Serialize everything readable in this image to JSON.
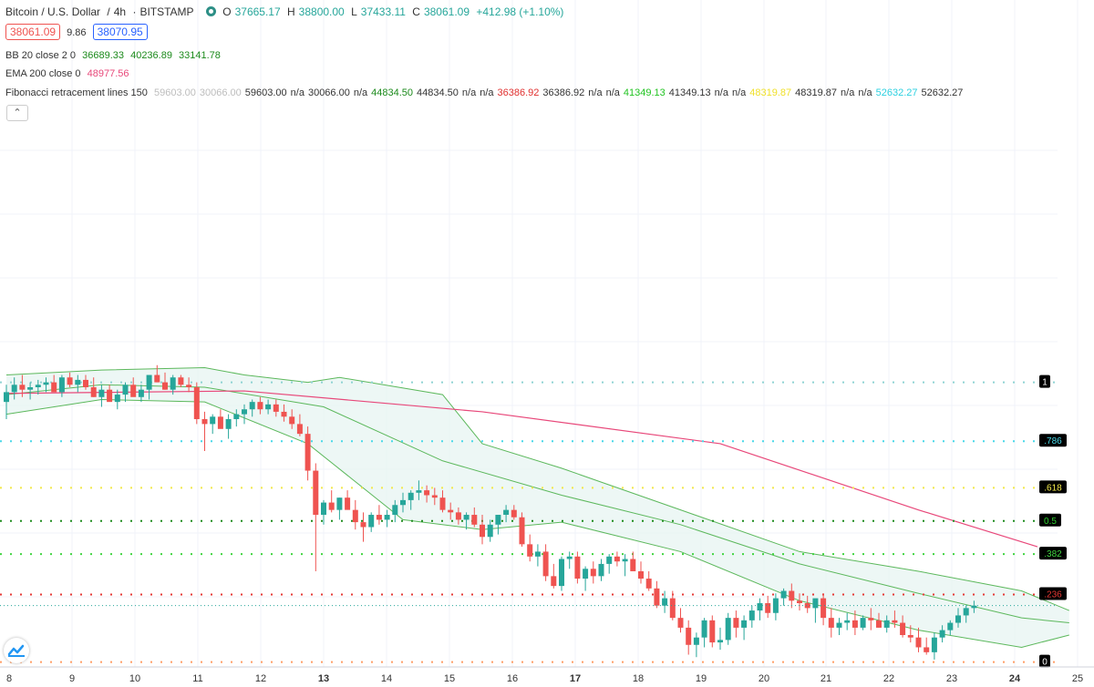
{
  "header": {
    "symbol": "Bitcoin / U.S. Dollar",
    "interval": "4h",
    "exchange": "BITSTAMP",
    "open_label": "O",
    "open": "37665.17",
    "high_label": "H",
    "high": "38800.00",
    "low_label": "L",
    "low": "37433.11",
    "close_label": "C",
    "close": "38061.09",
    "change": "+412.98 (+1.10%)"
  },
  "price_boxes": {
    "bid": "38061.09",
    "spread": "9.86",
    "ask": "38070.95"
  },
  "indicators": {
    "bb": {
      "label": "BB 20 close 2 0",
      "v1": "36689.33",
      "v2": "40236.89",
      "v3": "33141.78"
    },
    "ema": {
      "label": "EMA 200 close 0",
      "value": "48977.56"
    },
    "fib": {
      "label": "Fibonacci retracement lines 150",
      "values": [
        {
          "text": "59603.00",
          "color": "#bdbdbd"
        },
        {
          "text": "30066.00",
          "color": "#bdbdbd"
        },
        {
          "text": "59603.00",
          "color": "#333333"
        },
        {
          "text": "n/a",
          "color": "#333333"
        },
        {
          "text": "30066.00",
          "color": "#333333"
        },
        {
          "text": "n/a",
          "color": "#333333"
        },
        {
          "text": "44834.50",
          "color": "#1b8a1b"
        },
        {
          "text": "44834.50",
          "color": "#333333"
        },
        {
          "text": "n/a",
          "color": "#333333"
        },
        {
          "text": "n/a",
          "color": "#333333"
        },
        {
          "text": "36386.92",
          "color": "#e0302f"
        },
        {
          "text": "36386.92",
          "color": "#333333"
        },
        {
          "text": "n/a",
          "color": "#333333"
        },
        {
          "text": "n/a",
          "color": "#333333"
        },
        {
          "text": "41349.13",
          "color": "#22c422"
        },
        {
          "text": "41349.13",
          "color": "#333333"
        },
        {
          "text": "n/a",
          "color": "#333333"
        },
        {
          "text": "n/a",
          "color": "#333333"
        },
        {
          "text": "48319.87",
          "color": "#f0e02a"
        },
        {
          "text": "48319.87",
          "color": "#333333"
        },
        {
          "text": "n/a",
          "color": "#333333"
        },
        {
          "text": "n/a",
          "color": "#333333"
        },
        {
          "text": "52632.27",
          "color": "#2cd0e0"
        },
        {
          "text": "52632.27",
          "color": "#333333"
        }
      ]
    }
  },
  "collapse_label": "⌃",
  "colors": {
    "up": "#26a69a",
    "down": "#ef5350",
    "ema": "#e8487a",
    "bb": "#5cb85c",
    "bb_fill": "#e6f4f1",
    "grid": "#f0f3fa"
  },
  "chart_data": {
    "type": "candlestick",
    "x_ticks": [
      "9",
      "10",
      "11",
      "12",
      "13",
      "14",
      "15",
      "16",
      "17",
      "18",
      "19",
      "20",
      "21",
      "22",
      "23",
      "24",
      "25"
    ],
    "ylim": [
      29400,
      52200
    ],
    "candles": [
      [
        40200,
        40900,
        39500,
        40600
      ],
      [
        40600,
        41200,
        40300,
        40900
      ],
      [
        40900,
        41300,
        40400,
        40700
      ],
      [
        40700,
        41000,
        40300,
        40800
      ],
      [
        40800,
        41100,
        40500,
        40900
      ],
      [
        40900,
        41200,
        40600,
        41000
      ],
      [
        41000,
        41300,
        40700,
        40600
      ],
      [
        40600,
        41300,
        40400,
        41200
      ],
      [
        41200,
        41400,
        40800,
        40900
      ],
      [
        40900,
        41300,
        40600,
        41100
      ],
      [
        41100,
        41300,
        40700,
        40800
      ],
      [
        40800,
        41200,
        40400,
        40400
      ],
      [
        40400,
        40900,
        40000,
        40700
      ],
      [
        40700,
        40900,
        40300,
        40200
      ],
      [
        40200,
        40700,
        39900,
        40500
      ],
      [
        40500,
        41000,
        40200,
        40900
      ],
      [
        40900,
        41200,
        40600,
        40400
      ],
      [
        40400,
        40900,
        40200,
        40700
      ],
      [
        40700,
        41100,
        40300,
        41300
      ],
      [
        41300,
        41700,
        41000,
        41000
      ],
      [
        41000,
        41400,
        40700,
        40700
      ],
      [
        40700,
        41300,
        40500,
        41200
      ],
      [
        41200,
        41300,
        40800,
        40900
      ],
      [
        40900,
        41200,
        40600,
        40800
      ],
      [
        40800,
        41000,
        39300,
        39500
      ],
      [
        39500,
        39800,
        38200,
        39300
      ],
      [
        39300,
        39700,
        38900,
        39600
      ],
      [
        39600,
        39900,
        39200,
        39100
      ],
      [
        39100,
        39700,
        38700,
        39500
      ],
      [
        39500,
        39900,
        39200,
        39700
      ],
      [
        39700,
        40100,
        39300,
        39900
      ],
      [
        39900,
        40300,
        39600,
        40200
      ],
      [
        40200,
        40400,
        39700,
        39900
      ],
      [
        39900,
        40300,
        39700,
        40100
      ],
      [
        40100,
        40300,
        39600,
        39800
      ],
      [
        39800,
        40100,
        39400,
        39600
      ],
      [
        39600,
        39900,
        39100,
        39300
      ],
      [
        39300,
        39700,
        38800,
        38900
      ],
      [
        38900,
        39200,
        37000,
        37400
      ],
      [
        37400,
        37700,
        33300,
        35600
      ],
      [
        35600,
        36200,
        35200,
        36100
      ],
      [
        36100,
        36600,
        35700,
        35800
      ],
      [
        35800,
        36300,
        35400,
        36300
      ],
      [
        36300,
        36600,
        35900,
        35800
      ],
      [
        35800,
        36200,
        35000,
        35300
      ],
      [
        35300,
        35700,
        34500,
        35100
      ],
      [
        35100,
        35700,
        34900,
        35600
      ],
      [
        35600,
        36000,
        35200,
        35400
      ],
      [
        35400,
        35800,
        35100,
        35600
      ],
      [
        35600,
        36200,
        35300,
        36000
      ],
      [
        36000,
        36500,
        35700,
        36200
      ],
      [
        36200,
        36600,
        35800,
        36500
      ],
      [
        36500,
        37000,
        36200,
        36600
      ],
      [
        36600,
        36800,
        36100,
        36400
      ],
      [
        36400,
        36700,
        36000,
        36300
      ],
      [
        36300,
        36600,
        35700,
        35800
      ],
      [
        35800,
        36100,
        35400,
        35700
      ],
      [
        35700,
        35900,
        35200,
        35400
      ],
      [
        35400,
        35700,
        35000,
        35600
      ],
      [
        35600,
        35900,
        35100,
        35200
      ],
      [
        35200,
        35600,
        34400,
        34700
      ],
      [
        34700,
        35400,
        34500,
        35200
      ],
      [
        35200,
        35600,
        34800,
        35600
      ],
      [
        35600,
        36000,
        35300,
        35800
      ],
      [
        35800,
        36000,
        35400,
        35500
      ],
      [
        35500,
        35700,
        34300,
        34400
      ],
      [
        34400,
        34800,
        33700,
        33900
      ],
      [
        33900,
        34400,
        33500,
        34100
      ],
      [
        34100,
        34400,
        32900,
        33100
      ],
      [
        33100,
        33600,
        32600,
        32700
      ],
      [
        32700,
        33900,
        32500,
        33800
      ],
      [
        33800,
        34100,
        33400,
        33900
      ],
      [
        33900,
        34100,
        32800,
        33000
      ],
      [
        33000,
        33500,
        32500,
        33400
      ],
      [
        33400,
        33700,
        32800,
        33100
      ],
      [
        33100,
        33800,
        32900,
        33600
      ],
      [
        33600,
        34000,
        33200,
        33900
      ],
      [
        33900,
        34100,
        33500,
        33700
      ],
      [
        33700,
        34000,
        33100,
        33800
      ],
      [
        33800,
        34100,
        33500,
        33300
      ],
      [
        33300,
        33700,
        32800,
        33000
      ],
      [
        33000,
        33300,
        32500,
        32600
      ],
      [
        32600,
        32900,
        31800,
        31900
      ],
      [
        31900,
        32500,
        31600,
        32200
      ],
      [
        32200,
        32500,
        31300,
        31400
      ],
      [
        31400,
        31800,
        30800,
        31000
      ],
      [
        31000,
        31300,
        29900,
        30300
      ],
      [
        30300,
        30800,
        29800,
        30600
      ],
      [
        30600,
        31400,
        30200,
        31300
      ],
      [
        31300,
        31500,
        30200,
        30400
      ],
      [
        30400,
        31000,
        30100,
        30500
      ],
      [
        30500,
        31600,
        30300,
        31400
      ],
      [
        31400,
        31700,
        30600,
        31000
      ],
      [
        31000,
        31500,
        30500,
        31300
      ],
      [
        31300,
        31900,
        31000,
        31700
      ],
      [
        31700,
        32200,
        31300,
        32000
      ],
      [
        32000,
        32300,
        31400,
        31600
      ],
      [
        31600,
        32400,
        31300,
        32200
      ],
      [
        32200,
        32600,
        31900,
        32500
      ],
      [
        32500,
        32800,
        31800,
        32100
      ],
      [
        32100,
        32400,
        31700,
        32000
      ],
      [
        32000,
        32300,
        31600,
        31800
      ],
      [
        31800,
        32100,
        31200,
        32200
      ],
      [
        32200,
        32400,
        31100,
        31400
      ],
      [
        31400,
        31800,
        30600,
        31000
      ],
      [
        31000,
        31400,
        30700,
        31200
      ],
      [
        31200,
        31600,
        30900,
        31300
      ],
      [
        31300,
        31700,
        30700,
        31000
      ],
      [
        31000,
        31500,
        30900,
        31400
      ],
      [
        31400,
        31800,
        30900,
        31300
      ],
      [
        31300,
        31600,
        31000,
        31000
      ],
      [
        31000,
        31500,
        30800,
        31300
      ],
      [
        31300,
        31700,
        31000,
        31200
      ],
      [
        31200,
        31500,
        30600,
        30700
      ],
      [
        30700,
        31100,
        30400,
        30600
      ],
      [
        30600,
        31000,
        30000,
        30200
      ],
      [
        30200,
        30600,
        29900,
        30000
      ],
      [
        30000,
        30800,
        29700,
        30600
      ],
      [
        30600,
        31100,
        30400,
        30900
      ],
      [
        30900,
        31300,
        30700,
        31200
      ],
      [
        31200,
        31800,
        31000,
        31500
      ],
      [
        31500,
        31900,
        31200,
        31800
      ],
      [
        31800,
        32100,
        31600,
        31900
      ]
    ],
    "ema": [
      [
        0,
        40550
      ],
      [
        30,
        40650
      ],
      [
        60,
        39800
      ],
      [
        90,
        38500
      ],
      [
        115,
        35800
      ],
      [
        130,
        34300
      ]
    ],
    "bb": {
      "upper": [
        [
          0,
          41300
        ],
        [
          12,
          41500
        ],
        [
          25,
          41600
        ],
        [
          30,
          41300
        ],
        [
          38,
          41000
        ],
        [
          42,
          41200
        ],
        [
          55,
          40500
        ],
        [
          60,
          38500
        ],
        [
          70,
          37500
        ],
        [
          85,
          35800
        ],
        [
          100,
          34100
        ],
        [
          115,
          33300
        ],
        [
          128,
          32500
        ],
        [
          134,
          31700
        ]
      ],
      "middle": [
        [
          0,
          40500
        ],
        [
          12,
          40900
        ],
        [
          25,
          40800
        ],
        [
          40,
          40000
        ],
        [
          55,
          37800
        ],
        [
          70,
          36400
        ],
        [
          85,
          35200
        ],
        [
          100,
          33600
        ],
        [
          115,
          32400
        ],
        [
          128,
          31400
        ],
        [
          134,
          31200
        ]
      ],
      "lower": [
        [
          0,
          39700
        ],
        [
          12,
          40300
        ],
        [
          25,
          40200
        ],
        [
          38,
          38500
        ],
        [
          50,
          35400
        ],
        [
          60,
          35000
        ],
        [
          70,
          35300
        ],
        [
          85,
          34100
        ],
        [
          100,
          32100
        ],
        [
          115,
          30900
        ],
        [
          128,
          30200
        ],
        [
          134,
          30700
        ]
      ]
    },
    "fib_levels": [
      {
        "label": "1",
        "value": 41000,
        "color": "#8fd3d3",
        "tag_bg": "#000000",
        "tag_color": "#ffffff"
      },
      {
        "label": ".786",
        "value": 38600,
        "color": "#49d8e8",
        "tag_bg": "#000000",
        "tag_color": "#49d8e8"
      },
      {
        "label": ".618",
        "value": 36700,
        "color": "#f2e84a",
        "tag_bg": "#000000",
        "tag_color": "#f2e84a"
      },
      {
        "label": "0.5",
        "value": 35350,
        "color": "#1e8c1e",
        "tag_bg": "#000000",
        "tag_color": "#2ccf2c"
      },
      {
        "label": ".382",
        "value": 34000,
        "color": "#42d442",
        "tag_bg": "#000000",
        "tag_color": "#42d442"
      },
      {
        "label": ".236",
        "value": 32350,
        "color": "#e53935",
        "tag_bg": "#000000",
        "tag_color": "#e53935"
      },
      {
        "label": "0",
        "value": 29600,
        "color": "#ff9e66",
        "tag_bg": "#000000",
        "tag_color": "#ffffff"
      }
    ]
  }
}
